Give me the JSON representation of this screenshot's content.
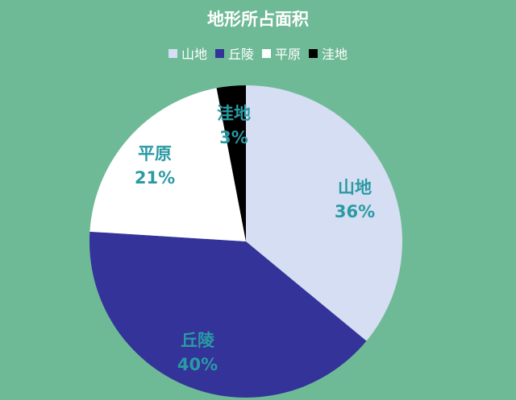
{
  "chart_data": {
    "type": "pie",
    "title": "地形所占面积",
    "legend_position": "top",
    "categories": [
      "山地",
      "丘陵",
      "平原",
      "洼地"
    ],
    "values": [
      36,
      40,
      21,
      3
    ],
    "labels": [
      "36%",
      "40%",
      "21%",
      "3%"
    ],
    "colors": [
      "#d5def2",
      "#333399",
      "#ffffff",
      "#000000"
    ],
    "label_color": "#2a9aa3",
    "background": "#6fba96",
    "start": "top",
    "direction": "clockwise"
  }
}
